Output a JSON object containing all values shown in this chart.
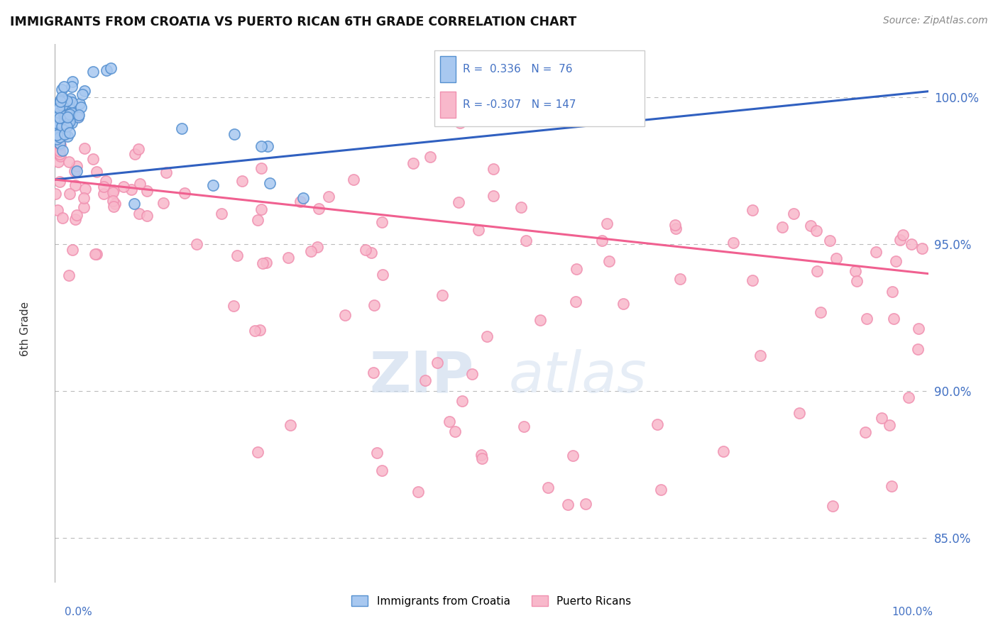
{
  "title": "IMMIGRANTS FROM CROATIA VS PUERTO RICAN 6TH GRADE CORRELATION CHART",
  "source_text": "Source: ZipAtlas.com",
  "ylabel": "6th Grade",
  "y_ticks": [
    85.0,
    90.0,
    95.0,
    100.0
  ],
  "y_tick_labels": [
    "85.0%",
    "90.0%",
    "95.0%",
    "100.0%"
  ],
  "x_min": 0.0,
  "x_max": 100.0,
  "y_min": 83.5,
  "y_max": 101.8,
  "r_croatia": 0.336,
  "n_croatia": 76,
  "r_puerto": -0.307,
  "n_puerto": 147,
  "color_croatia_fill": "#a8c8f0",
  "color_croatia_edge": "#5590d0",
  "color_puerto_fill": "#f8b8cb",
  "color_puerto_edge": "#f090b0",
  "color_trendline_croatia": "#3060c0",
  "color_trendline_puerto": "#f06090",
  "legend_label_croatia": "Immigrants from Croatia",
  "legend_label_puerto": "Puerto Ricans",
  "watermark_zip": "ZIP",
  "watermark_atlas": "atlas",
  "background_color": "#ffffff",
  "grid_color": "#bbbbbb",
  "title_color": "#111111",
  "source_color": "#888888",
  "axis_label_color": "#4472c4",
  "ylabel_color": "#333333",
  "trendline_start_croatia_y": 97.2,
  "trendline_end_croatia_y": 100.2,
  "trendline_start_puerto_y": 97.2,
  "trendline_end_puerto_y": 94.0
}
